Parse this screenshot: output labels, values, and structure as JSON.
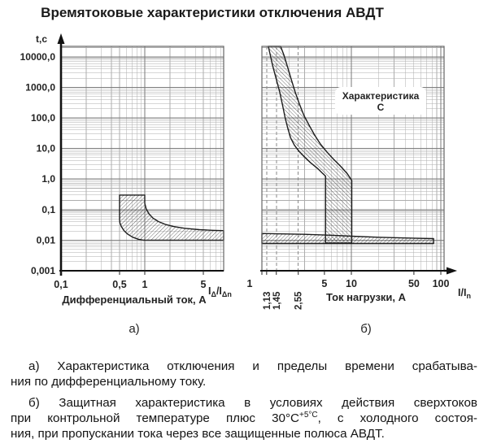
{
  "title": "Времятоковые характеристики отключения АВДТ",
  "colors": {
    "grid_minor": "#adadad",
    "grid_major": "#7a7a7a",
    "plot_border": "#666666",
    "axis": "#111111",
    "hatch": "#3d3d3d",
    "region_outline": "#1c1c1c",
    "dashed_line": "#8a8a8a",
    "text": "#242424"
  },
  "chart_data": [
    {
      "id": "a",
      "type": "area",
      "sub_label": "а)",
      "y_axis_label": "t,c",
      "xlabel": "Дифференциальный ток, А",
      "x_unit_segments": [
        {
          "t": "I"
        },
        {
          "t": "Δ",
          "sub": true
        },
        {
          "t": "/I"
        },
        {
          "t": "Δn",
          "sub": true
        }
      ],
      "x_scale": "log",
      "y_scale": "log",
      "x_range": [
        0.1,
        8.74
      ],
      "y_range": [
        0.001,
        21900
      ],
      "x_ticks": [
        {
          "v": 0.1,
          "label": "0,1"
        },
        {
          "v": 0.5,
          "label": "0,5"
        },
        {
          "v": 1,
          "label": "1"
        },
        {
          "v": 5,
          "label": "5"
        }
      ],
      "y_ticks": [
        {
          "v": 10000,
          "label": "10000,0"
        },
        {
          "v": 1000,
          "label": "1000,0"
        },
        {
          "v": 100,
          "label": "100,0"
        },
        {
          "v": 10,
          "label": "10,0"
        },
        {
          "v": 1,
          "label": "1,0"
        },
        {
          "v": 0.1,
          "label": "0,1"
        },
        {
          "v": 0.01,
          "label": "0,01"
        },
        {
          "v": 0.001,
          "label": "0,001"
        }
      ],
      "regions": [
        {
          "name": "differential-trip-band",
          "hatch": "fwd",
          "points": [
            [
              0.5,
              0.3
            ],
            [
              1.0,
              0.3
            ],
            [
              1.0,
              0.16
            ],
            [
              1.04,
              0.105
            ],
            [
              1.12,
              0.073
            ],
            [
              1.25,
              0.053
            ],
            [
              1.45,
              0.041
            ],
            [
              1.75,
              0.033
            ],
            [
              2.2,
              0.028
            ],
            [
              3.0,
              0.0245
            ],
            [
              4.5,
              0.022
            ],
            [
              6.5,
              0.021
            ],
            [
              8.74,
              0.0205
            ],
            [
              8.74,
              0.01
            ],
            [
              0.97,
              0.01
            ],
            [
              0.84,
              0.0107
            ],
            [
              0.72,
              0.0125
            ],
            [
              0.63,
              0.0155
            ],
            [
              0.565,
              0.0205
            ],
            [
              0.525,
              0.028
            ],
            [
              0.505,
              0.037
            ],
            [
              0.5,
              0.046
            ]
          ]
        }
      ]
    },
    {
      "id": "b",
      "type": "area",
      "sub_label": "б)",
      "annotation": {
        "line1": "Характеристика",
        "line2": "С"
      },
      "xlabel": "Ток нагрузки, А",
      "x_unit_segments": [
        {
          "t": "I"
        },
        {
          "t": "/I"
        },
        {
          "t": "n",
          "sub": true
        }
      ],
      "x_scale": "log",
      "y_scale": "log",
      "x_range": [
        1,
        108.7
      ],
      "y_range": [
        0.001,
        21900
      ],
      "dashed_lines": [
        1.13,
        1.45,
        2.55
      ],
      "x_ticks": [
        {
          "v": 1,
          "label": "1",
          "dx": -15
        },
        {
          "v": 1.13,
          "label": "1,13",
          "rot": true
        },
        {
          "v": 1.45,
          "label": "1,45",
          "rot": true
        },
        {
          "v": 2.55,
          "label": "2,55",
          "rot": true
        },
        {
          "v": 5,
          "label": "5"
        },
        {
          "v": 10,
          "label": "10"
        },
        {
          "v": 50,
          "label": "50"
        },
        {
          "v": 100,
          "label": "100"
        }
      ],
      "y_ticks": [],
      "regions": [
        {
          "name": "overcurrent-trip-band",
          "hatch": "back",
          "points": [
            [
              1.18,
              21900
            ],
            [
              1.32,
              5000
            ],
            [
              1.45,
              1800
            ],
            [
              1.58,
              700
            ],
            [
              1.7,
              260
            ],
            [
              1.82,
              100
            ],
            [
              1.95,
              45
            ],
            [
              2.1,
              22
            ],
            [
              2.3,
              13
            ],
            [
              2.6,
              8
            ],
            [
              3.0,
              5.2
            ],
            [
              3.5,
              3.4
            ],
            [
              4.2,
              2.2
            ],
            [
              4.75,
              1.55
            ],
            [
              5.15,
              1.25
            ],
            [
              5.15,
              0.008
            ],
            [
              10.1,
              0.008
            ],
            [
              10.1,
              0.9
            ],
            [
              9.0,
              1.5
            ],
            [
              7.6,
              2.6
            ],
            [
              6.3,
              4.5
            ],
            [
              5.3,
              7.8
            ],
            [
              4.5,
              14
            ],
            [
              3.9,
              27
            ],
            [
              3.4,
              55
            ],
            [
              2.95,
              120
            ],
            [
              2.62,
              290
            ],
            [
              2.35,
              720
            ],
            [
              2.12,
              1900
            ],
            [
              1.93,
              4800
            ],
            [
              1.76,
              11500
            ],
            [
              1.62,
              21900
            ]
          ]
        },
        {
          "name": "instant-trip-band",
          "hatch": "fwd",
          "points": [
            [
              1,
              0.0165
            ],
            [
              3,
              0.0155
            ],
            [
              6,
              0.0145
            ],
            [
              10,
              0.0135
            ],
            [
              20,
              0.0125
            ],
            [
              40,
              0.0118
            ],
            [
              83,
              0.0112
            ],
            [
              83,
              0.0078
            ],
            [
              1,
              0.0078
            ]
          ]
        }
      ]
    }
  ],
  "captions": {
    "a_lines": [
      {
        "segs": [
          {
            "t": "а) Характеристика отключения и пределы времени срабатыва-"
          }
        ],
        "fill": true,
        "indent": true
      },
      {
        "segs": [
          {
            "t": "ния по дифференциальному току."
          }
        ],
        "fill": false
      }
    ],
    "b_lines": [
      {
        "segs": [
          {
            "t": "б) Защитная характеристика в условиях действия сверхтоков"
          }
        ],
        "fill": true,
        "indent": true
      },
      {
        "segs": [
          {
            "t": "при контрольной температуре плюс 30°С"
          },
          {
            "t": "+5°С",
            "sup": true
          },
          {
            "t": ", с холодного состоя-"
          }
        ],
        "fill": true
      },
      {
        "segs": [
          {
            "t": "ния, при пропускании тока через все защищенные полюса АВДТ."
          }
        ],
        "fill": false
      }
    ]
  }
}
